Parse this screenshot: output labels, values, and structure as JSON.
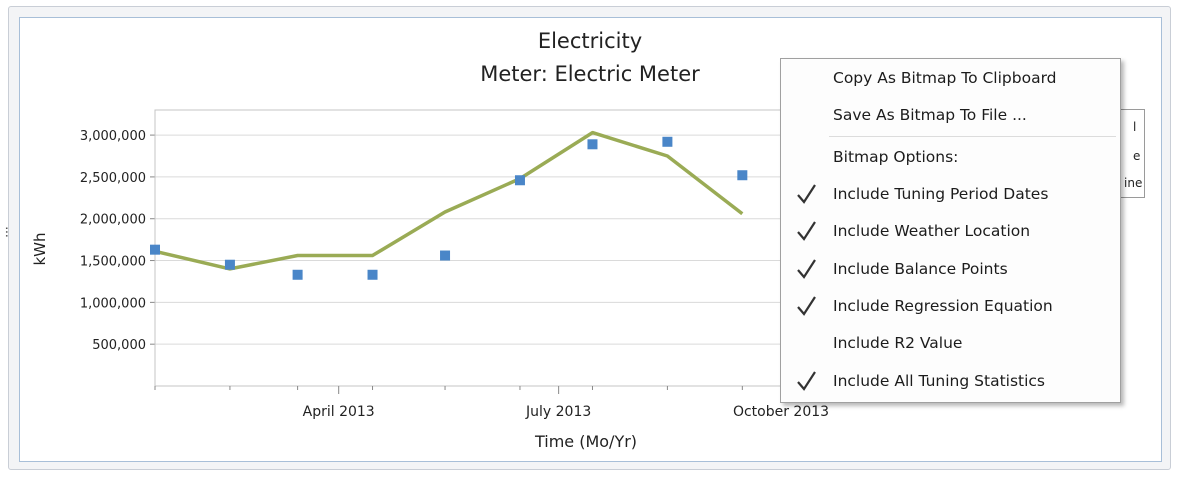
{
  "chart_data": {
    "type": "line",
    "title": "Electricity",
    "subtitle": "Meter: Electric Meter",
    "xlabel": "Time (Mo/Yr)",
    "ylabel": "kWh",
    "ylim": [
      0,
      3300000
    ],
    "y_ticks": [
      500000,
      1000000,
      1500000,
      2000000,
      2500000,
      3000000
    ],
    "y_tick_labels": [
      "500,000",
      "1,000,000",
      "1,500,000",
      "2,000,000",
      "2,500,000",
      "3,000,000"
    ],
    "x_tick_labels": [
      "April 2013",
      "July 2013",
      "October 2013"
    ],
    "x_ticks": [
      "2013-04-01",
      "2013-07-01",
      "2013-10-01"
    ],
    "grid": true,
    "series": [
      {
        "type": "scatter",
        "color": "#4a86c8",
        "x": [
          "2013-01-15",
          "2013-02-15",
          "2013-03-15",
          "2013-04-15",
          "2013-05-15",
          "2013-06-15",
          "2013-07-15",
          "2013-08-15",
          "2013-09-15"
        ],
        "values": [
          1630000,
          1450000,
          1330000,
          1330000,
          1560000,
          2460000,
          2890000,
          2920000,
          2520000
        ]
      },
      {
        "type": "line",
        "color": "#9aab55",
        "x": [
          "2013-01-15",
          "2013-02-15",
          "2013-03-15",
          "2013-04-15",
          "2013-05-15",
          "2013-06-15",
          "2013-07-15",
          "2013-08-15",
          "2013-09-15"
        ],
        "values": [
          1610000,
          1400000,
          1560000,
          1560000,
          2080000,
          2480000,
          3030000,
          2750000,
          2060000
        ]
      }
    ]
  },
  "left_edge_text": "...",
  "legend_fragments": [
    "l",
    "e",
    "ine"
  ],
  "context_menu": {
    "copy_bitmap": "Copy As Bitmap To Clipboard",
    "save_bitmap": "Save As Bitmap To File ...",
    "options_header": "Bitmap Options:",
    "options": [
      {
        "label": "Include Tuning Period Dates",
        "checked": true
      },
      {
        "label": "Include Weather Location",
        "checked": true
      },
      {
        "label": "Include Balance Points",
        "checked": true
      },
      {
        "label": "Include Regression Equation",
        "checked": true
      },
      {
        "label": "Include R2 Value",
        "checked": false
      },
      {
        "label": "Include All Tuning Statistics",
        "checked": true
      }
    ]
  }
}
